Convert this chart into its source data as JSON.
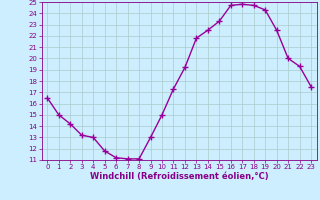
{
  "x": [
    0,
    1,
    2,
    3,
    4,
    5,
    6,
    7,
    8,
    9,
    10,
    11,
    12,
    13,
    14,
    15,
    16,
    17,
    18,
    19,
    20,
    21,
    22,
    23
  ],
  "y": [
    16.5,
    15.0,
    14.2,
    13.2,
    13.0,
    11.8,
    11.2,
    11.1,
    11.1,
    13.0,
    15.0,
    17.3,
    19.2,
    21.8,
    22.5,
    23.3,
    24.7,
    24.8,
    24.7,
    24.3,
    22.5,
    20.0,
    19.3,
    17.5
  ],
  "line_color": "#990099",
  "marker": "+",
  "marker_size": 4,
  "bg_color": "#cceeff",
  "grid_color": "#aacccc",
  "tick_color": "#880088",
  "label_color": "#880088",
  "xlabel": "Windchill (Refroidissement éolien,°C)",
  "ylim": [
    11,
    25
  ],
  "xlim": [
    -0.5,
    23.5
  ],
  "yticks": [
    11,
    12,
    13,
    14,
    15,
    16,
    17,
    18,
    19,
    20,
    21,
    22,
    23,
    24,
    25
  ],
  "xticks": [
    0,
    1,
    2,
    3,
    4,
    5,
    6,
    7,
    8,
    9,
    10,
    11,
    12,
    13,
    14,
    15,
    16,
    17,
    18,
    19,
    20,
    21,
    22,
    23
  ],
  "tick_fontsize": 5,
  "xlabel_fontsize": 6,
  "linewidth": 1.0
}
